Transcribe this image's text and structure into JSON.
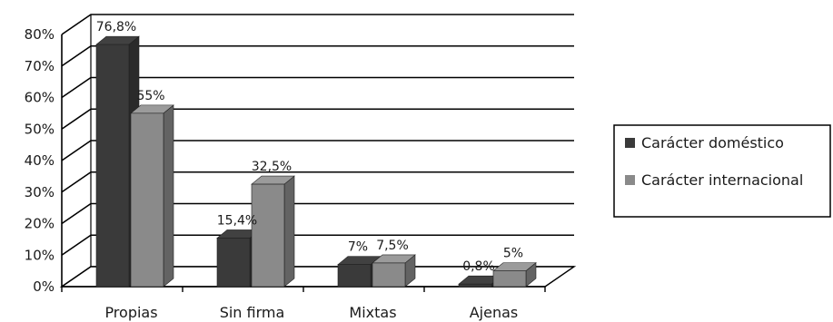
{
  "chart_data": {
    "type": "bar",
    "categories": [
      "Propias",
      "Sin firma",
      "Mixtas",
      "Ajenas"
    ],
    "series": [
      {
        "name": "Carácter doméstico",
        "values": [
          76.8,
          15.4,
          7,
          0.8
        ],
        "labels": [
          "76,8%",
          "15,4%",
          "7%",
          "0,8%"
        ],
        "color": "#3a3a3a"
      },
      {
        "name": "Carácter internacional",
        "values": [
          55,
          32.5,
          7.5,
          5
        ],
        "labels": [
          "55%",
          "32,5%",
          "7,5%",
          "5%"
        ],
        "color": "#8a8a8a"
      }
    ],
    "ylim": [
      0,
      80
    ],
    "yticks": [
      "0%",
      "10%",
      "20%",
      "30%",
      "40%",
      "50%",
      "60%",
      "70%",
      "80%"
    ],
    "grid": true,
    "legend": "right",
    "style": "3d-column"
  }
}
